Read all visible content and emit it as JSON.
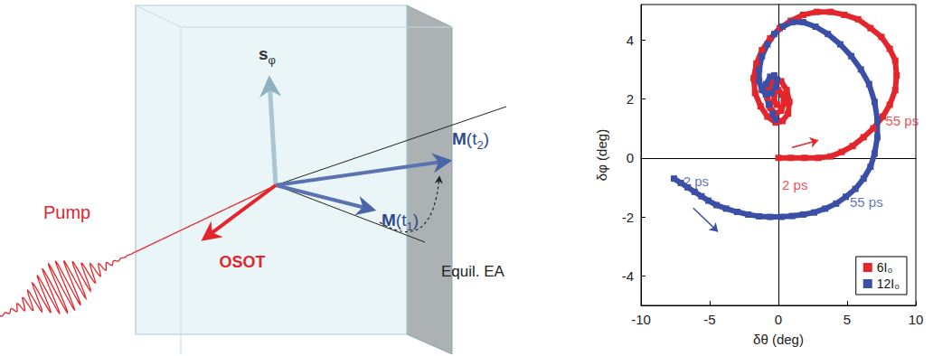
{
  "diagram": {
    "pump": "Pump",
    "osot": "OSOT",
    "s_phi": [
      {
        "text": "s"
      },
      {
        "text": "φ",
        "sub": true
      }
    ],
    "m_t1": [
      {
        "text": "M"
      },
      {
        "text": "(t"
      },
      {
        "text": "1",
        "sub": true
      },
      {
        "text": ")"
      }
    ],
    "m_t2": [
      {
        "text": "M"
      },
      {
        "text": "(t"
      },
      {
        "text": "2",
        "sub": true
      },
      {
        "text": ")"
      }
    ],
    "equil_ea": "Equil. EA"
  },
  "chart_data": {
    "type": "line",
    "x_label": "δθ (deg)",
    "y_label": "δφ (deg)",
    "xlim": [
      -10,
      10
    ],
    "xticks": [
      -10,
      -5,
      0,
      5,
      10
    ],
    "ylim": [
      -5,
      5.2
    ],
    "yticks": [
      -4,
      -2,
      0,
      2,
      4
    ],
    "grid": false,
    "legend": "lower right",
    "marker": "square",
    "series": [
      {
        "name": "6I₀",
        "color": "#e3262b",
        "x": [
          0,
          0.9,
          1.9,
          2.9,
          3.8,
          4.6,
          5.4,
          6.2,
          6.9,
          7.6,
          8.1,
          8.5,
          8.6,
          8.5,
          8.1,
          7.5,
          6.7,
          5.8,
          4.8,
          3.8,
          2.8,
          1.8,
          0.9,
          0.1,
          -0.6,
          -1.2,
          -1.6,
          -1.8,
          -1.7,
          -1.3,
          -0.8,
          -0.2,
          0.3,
          0.7,
          0.8,
          0.6,
          0.2,
          -0.3,
          -0.7,
          -0.8,
          -0.6,
          -0.2,
          0.2,
          0.4,
          0.3,
          0,
          -0.3,
          -0.3,
          -0.1
        ],
        "values": [
          0,
          0,
          0,
          0,
          0.05,
          0.2,
          0.4,
          0.7,
          1.0,
          1.4,
          1.8,
          2.3,
          2.8,
          3.3,
          3.7,
          4.1,
          4.4,
          4.7,
          4.85,
          4.95,
          4.95,
          4.85,
          4.65,
          4.4,
          4.05,
          3.65,
          3.2,
          2.7,
          2.2,
          1.75,
          1.4,
          1.2,
          1.25,
          1.5,
          1.9,
          2.3,
          2.6,
          2.65,
          2.4,
          2.05,
          1.7,
          1.5,
          1.6,
          1.85,
          2.15,
          2.3,
          2.15,
          1.9,
          1.8
        ]
      },
      {
        "name": "12I₀",
        "color": "#3b4fa6",
        "x": [
          -7.6,
          -7.1,
          -6.6,
          -6.1,
          -5.6,
          -5.1,
          -4.5,
          -3.8,
          -3.0,
          -2.2,
          -1.4,
          -0.6,
          0.2,
          1.0,
          1.8,
          2.6,
          3.4,
          4.2,
          4.9,
          5.6,
          6.2,
          6.7,
          7.0,
          7.2,
          7.2,
          7.0,
          6.6,
          6.0,
          5.3,
          4.5,
          3.6,
          2.7,
          1.8,
          1.0,
          0.3,
          -0.3,
          -0.8,
          -1.2,
          -1.4,
          -1.4,
          -1.2,
          -0.9,
          -0.5,
          -0.2,
          -0.1,
          -0.3,
          -0.6,
          -0.9,
          -0.9,
          -0.7,
          -0.4,
          -0.2
        ],
        "values": [
          -0.7,
          -0.85,
          -1.0,
          -1.15,
          -1.3,
          -1.45,
          -1.6,
          -1.72,
          -1.83,
          -1.92,
          -1.98,
          -2.0,
          -2.0,
          -1.97,
          -1.92,
          -1.85,
          -1.72,
          -1.55,
          -1.32,
          -1.05,
          -0.7,
          -0.3,
          0.15,
          0.7,
          1.3,
          1.9,
          2.5,
          3.0,
          3.45,
          3.85,
          4.2,
          4.45,
          4.6,
          4.6,
          4.45,
          4.2,
          3.85,
          3.45,
          3.0,
          2.6,
          2.3,
          2.15,
          2.2,
          2.4,
          2.65,
          2.8,
          2.75,
          2.5,
          2.15,
          1.8,
          1.5,
          1.3
        ]
      }
    ],
    "annotations": [
      {
        "text": "2 ps",
        "x": -6.0,
        "y": -0.8,
        "color": "#3b4fa6",
        "arrow": [
          [
            -6.2,
            -1.7
          ],
          [
            -4.4,
            -2.5
          ]
        ]
      },
      {
        "text": "55 ps",
        "x": 6.4,
        "y": -1.5,
        "color": "#3b4fa6"
      },
      {
        "text": "2 ps",
        "x": 1.2,
        "y": -0.9,
        "color": "#e3262b",
        "arrow": [
          [
            1.0,
            0.35
          ],
          [
            2.9,
            0.6
          ]
        ]
      },
      {
        "text": "55 ps",
        "x": 9.0,
        "y": 1.25,
        "color": "#e3262b"
      }
    ]
  }
}
